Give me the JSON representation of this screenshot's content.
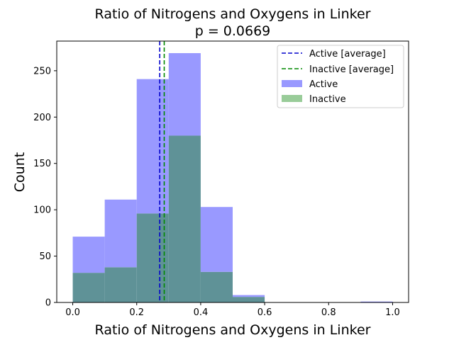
{
  "chart_data": {
    "type": "bar",
    "title_line1": "Ratio of Nitrogens and Oxygens in Linker",
    "title_line2": "p = 0.0669",
    "xlabel": "Ratio of Nitrogens and Oxygens in Linker",
    "ylabel": "Count",
    "xlim": [
      -0.05,
      1.05
    ],
    "ylim": [
      0,
      282
    ],
    "x_ticks": [
      "0.0",
      "0.2",
      "0.4",
      "0.6",
      "0.8",
      "1.0"
    ],
    "y_ticks": [
      "0",
      "50",
      "100",
      "150",
      "200",
      "250"
    ],
    "bin_edges": [
      0.0,
      0.1,
      0.2,
      0.3,
      0.4,
      0.5,
      0.6,
      0.7,
      0.8,
      0.9,
      1.0
    ],
    "legend_position": "top-right",
    "series": [
      {
        "name": "Active",
        "values": [
          71,
          111,
          241,
          269,
          103,
          8,
          0,
          0,
          0,
          1
        ],
        "color": "#9999ff"
      },
      {
        "name": "Inactive",
        "values": [
          32,
          38,
          96,
          180,
          33,
          6,
          0,
          0,
          0,
          0
        ],
        "color": "#99cc99"
      }
    ],
    "averages": [
      {
        "name": "Active [average]",
        "value": 0.272,
        "color": "#0000cc"
      },
      {
        "name": "Inactive [average]",
        "value": 0.286,
        "color": "#008800"
      }
    ],
    "overlap_color": "#5f9297"
  }
}
